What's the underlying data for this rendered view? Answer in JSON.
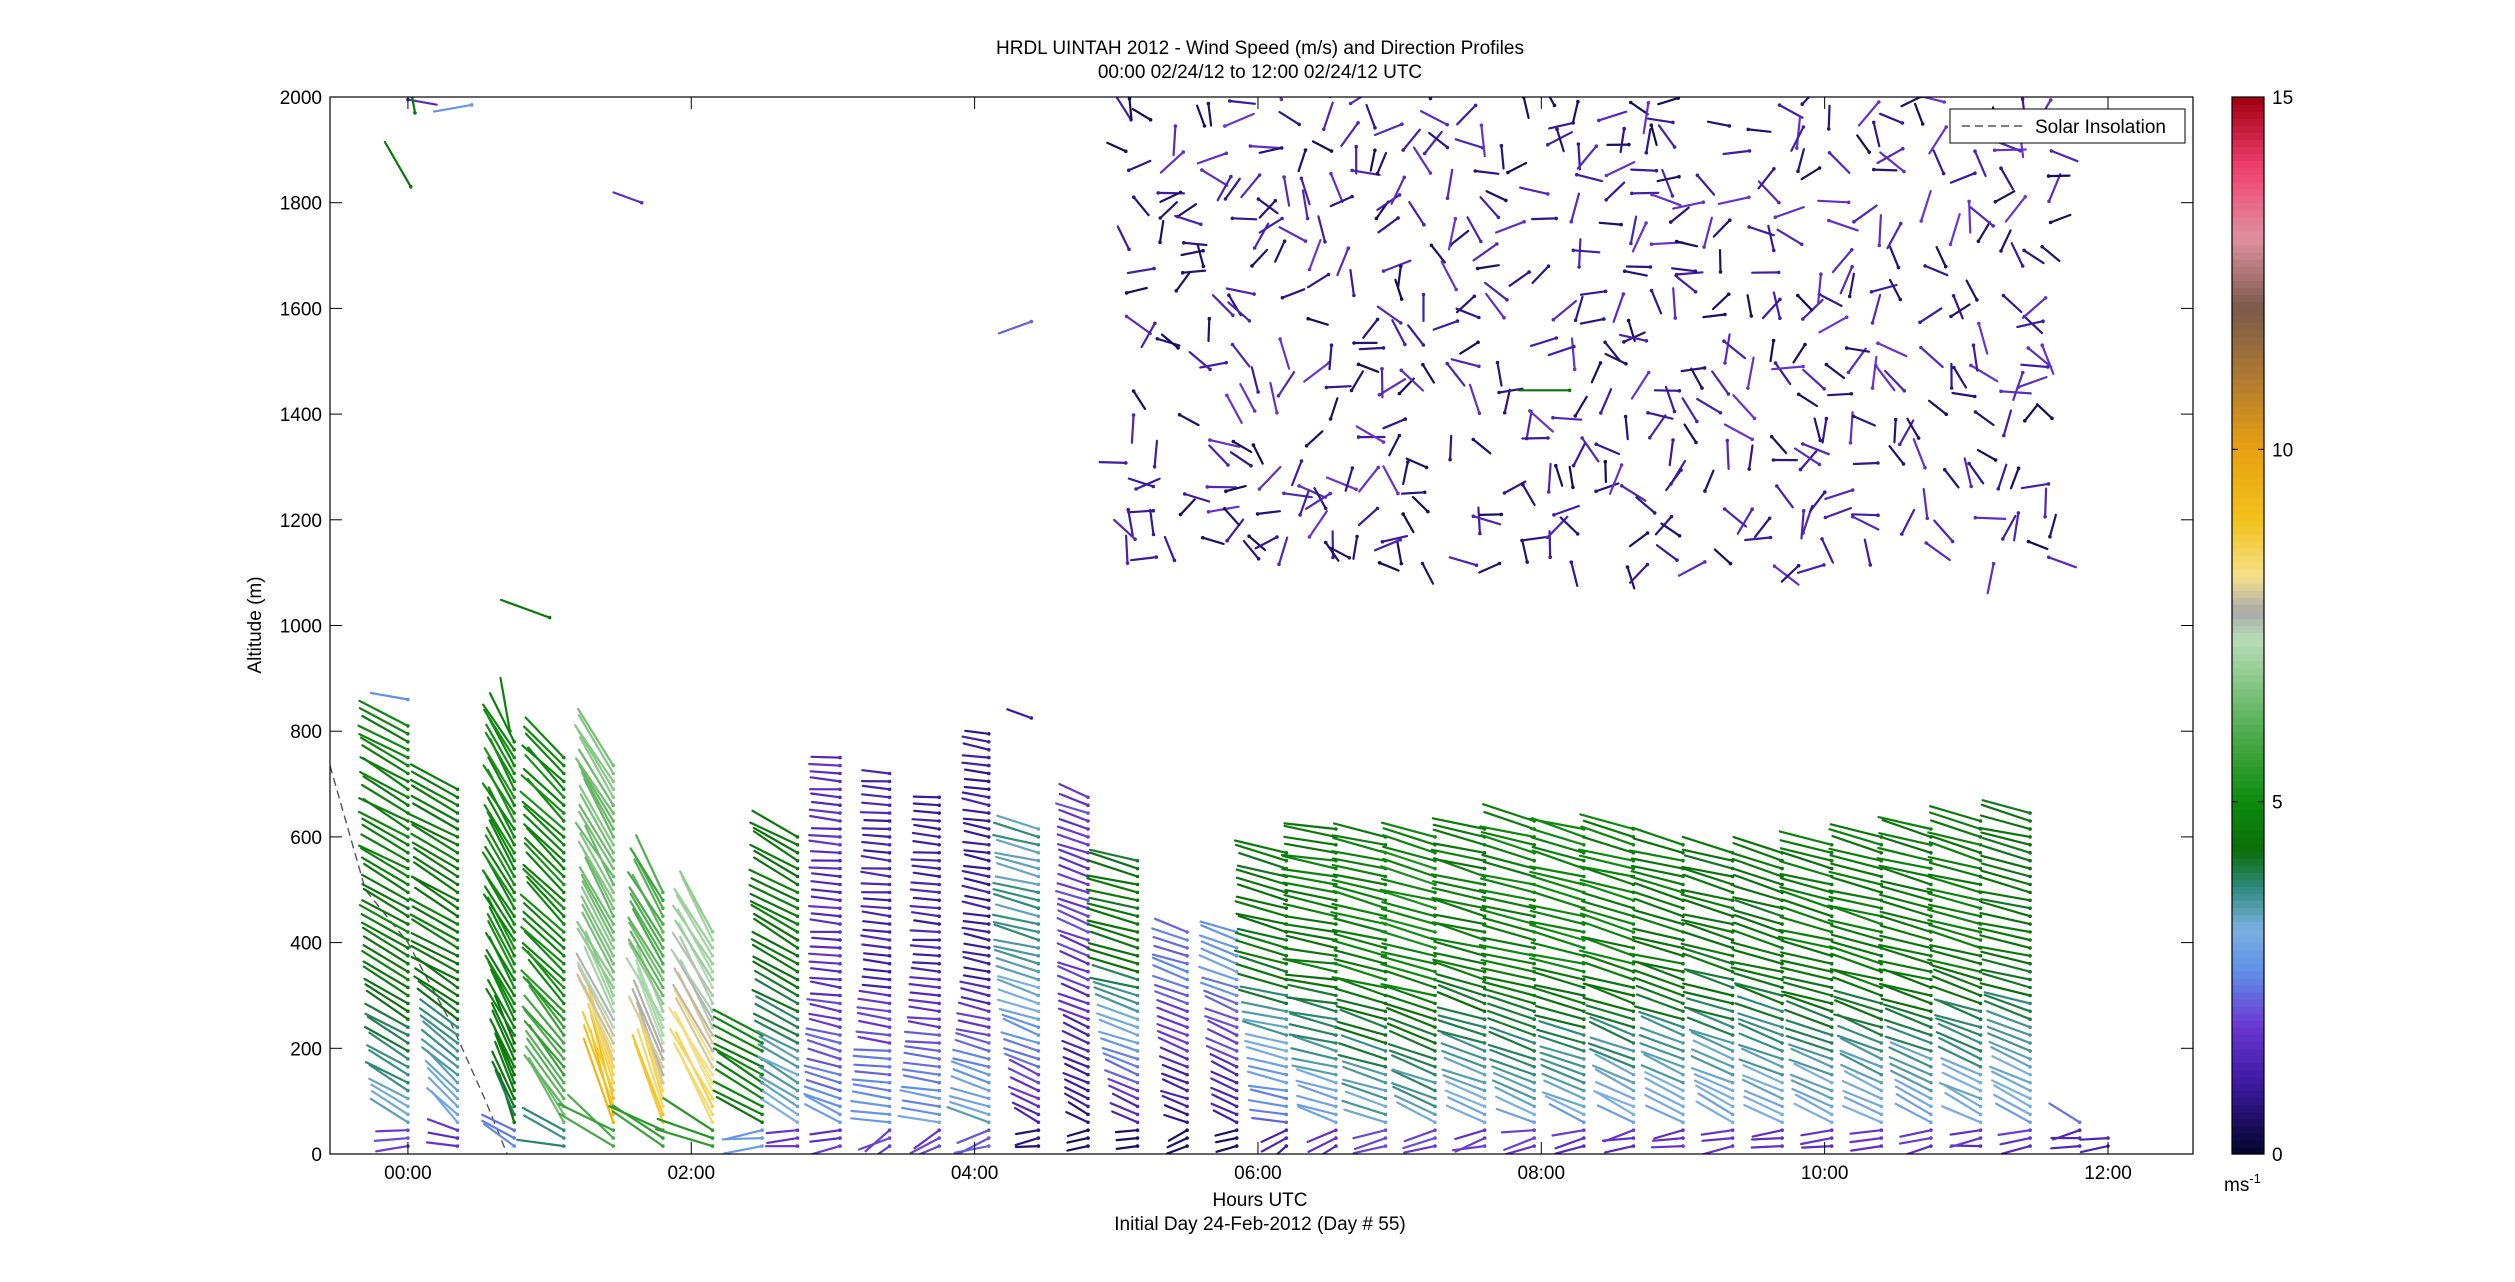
{
  "chart_data": {
    "type": "wind-barb-profile",
    "title": "HRDL UINTAH 2012 - Wind Speed (m/s) and Direction Profiles",
    "subtitle": "00:00 02/24/12 to 12:00 02/24/12  UTC",
    "xlabel": "Hours UTC",
    "xlabel2": "Initial Day 24-Feb-2012 (Day # 55)",
    "ylabel": "Altitude (m)",
    "xlim": [
      -0.55,
      12.6
    ],
    "ylim": [
      0,
      2000
    ],
    "xticks": [
      0,
      2,
      4,
      6,
      8,
      10,
      12
    ],
    "xtick_labels": [
      "00:00",
      "02:00",
      "04:00",
      "06:00",
      "08:00",
      "10:00",
      "12:00"
    ],
    "yticks": [
      0,
      200,
      400,
      600,
      800,
      1000,
      1200,
      1400,
      1600,
      1800,
      2000
    ],
    "legend": {
      "label": "Solar Insolation",
      "location": "top-right",
      "line_color": "#555555"
    },
    "solar_insolation": [
      [
        -0.55,
        735
      ],
      [
        -0.3,
        500
      ],
      [
        0.0,
        400
      ],
      [
        0.3,
        250
      ],
      [
        0.55,
        100
      ],
      [
        0.7,
        0
      ]
    ],
    "colorbar": {
      "min": 0,
      "max": 15,
      "ticks": [
        0,
        5,
        10,
        15
      ],
      "tick_labels": [
        "0",
        "5",
        "10",
        "15"
      ],
      "unit_label": "ms",
      "unit_exponent": "-1",
      "stops": [
        [
          0,
          "#05052a"
        ],
        [
          1,
          "#3a1aa0"
        ],
        [
          1.8,
          "#6a35d0"
        ],
        [
          2.6,
          "#6090e8"
        ],
        [
          3.2,
          "#7ab0e0"
        ],
        [
          3.8,
          "#2e8a7a"
        ],
        [
          4.3,
          "#0a6e0a"
        ],
        [
          5.0,
          "#0d8a0d"
        ],
        [
          6.0,
          "#4fad4f"
        ],
        [
          7.3,
          "#b8ddb8"
        ],
        [
          7.7,
          "#aaaaaa"
        ],
        [
          8.2,
          "#f5e08a"
        ],
        [
          9.0,
          "#f2c21a"
        ],
        [
          10.0,
          "#e8a010"
        ],
        [
          11.0,
          "#b07a30"
        ],
        [
          12.0,
          "#7a5a4a"
        ],
        [
          13.0,
          "#e090a0"
        ],
        [
          14.0,
          "#f04070"
        ],
        [
          15.0,
          "#a00010"
        ]
      ]
    },
    "profiles": [
      {
        "t": 0.0,
        "ztop": 820,
        "s_low": 3.0,
        "s_high": 4.7,
        "d_low": 300,
        "d_high": 300
      },
      {
        "t": 0.35,
        "ztop": 700,
        "s_low": 2.6,
        "s_high": 4.6,
        "d_low": 320,
        "d_high": 300
      },
      {
        "t": 0.75,
        "ztop": 780,
        "s_low": 4.0,
        "s_high": 5.0,
        "d_low": 340,
        "d_high": 330
      },
      {
        "t": 1.1,
        "ztop": 760,
        "s_low": 6.5,
        "s_high": 5.0,
        "d_low": 330,
        "d_high": 315
      },
      {
        "t": 1.45,
        "ztop": 740,
        "s_low": 10.0,
        "s_high": 6.5,
        "d_low": 345,
        "d_high": 330
      },
      {
        "t": 1.8,
        "ztop": 500,
        "s_low": 9.5,
        "s_high": 6.0,
        "d_low": 345,
        "d_high": 330
      },
      {
        "t": 2.15,
        "ztop": 420,
        "s_low": 9.0,
        "s_high": 7.0,
        "d_low": 330,
        "d_high": 330
      },
      {
        "t": 2.5,
        "ztop": 230,
        "s_low": 4.5,
        "s_high": 5.0,
        "d_low": 300,
        "d_high": 300
      },
      {
        "t": 2.75,
        "ztop": 600,
        "s_low": 2.8,
        "s_high": 4.5,
        "d_low": 300,
        "d_high": 300
      },
      {
        "t": 3.05,
        "ztop": 760,
        "s_low": 3.0,
        "s_high": 1.5,
        "d_low": 300,
        "d_high": 275
      },
      {
        "t": 3.4,
        "ztop": 720,
        "s_low": 3.3,
        "s_high": 1.2,
        "d_low": 280,
        "d_high": 275
      },
      {
        "t": 3.75,
        "ztop": 680,
        "s_low": 3.3,
        "s_high": 1.2,
        "d_low": 280,
        "d_high": 275
      },
      {
        "t": 4.1,
        "ztop": 800,
        "s_low": 3.8,
        "s_high": 1.0,
        "d_low": 290,
        "d_high": 280
      },
      {
        "t": 4.45,
        "ztop": 620,
        "s_low": 0.9,
        "s_high": 3.6,
        "d_low": 300,
        "d_high": 285
      },
      {
        "t": 4.8,
        "ztop": 680,
        "s_low": 0.6,
        "s_high": 1.8,
        "d_low": 300,
        "d_high": 290
      },
      {
        "t": 5.15,
        "ztop": 560,
        "s_low": 0.5,
        "s_high": 4.3,
        "d_low": 300,
        "d_high": 285
      },
      {
        "t": 5.5,
        "ztop": 420,
        "s_low": 0.5,
        "s_high": 2.4,
        "d_low": 290,
        "d_high": 290
      },
      {
        "t": 5.85,
        "ztop": 420,
        "s_low": 0.5,
        "s_high": 2.8,
        "d_low": 300,
        "d_high": 290
      },
      {
        "t": 6.2,
        "ztop": 580,
        "s_low": 1.8,
        "s_high": 4.4,
        "d_low": 280,
        "d_high": 285
      },
      {
        "t": 6.55,
        "ztop": 620,
        "s_low": 2.4,
        "s_high": 4.6,
        "d_low": 290,
        "d_high": 280
      },
      {
        "t": 6.9,
        "ztop": 600,
        "s_low": 3.0,
        "s_high": 4.8,
        "d_low": 290,
        "d_high": 285
      },
      {
        "t": 7.25,
        "ztop": 610,
        "s_low": 3.0,
        "s_high": 5.0,
        "d_low": 295,
        "d_high": 285
      },
      {
        "t": 7.6,
        "ztop": 620,
        "s_low": 2.8,
        "s_high": 4.6,
        "d_low": 295,
        "d_high": 285
      },
      {
        "t": 7.95,
        "ztop": 640,
        "s_low": 2.8,
        "s_high": 4.8,
        "d_low": 295,
        "d_high": 285
      },
      {
        "t": 8.3,
        "ztop": 620,
        "s_low": 2.6,
        "s_high": 4.8,
        "d_low": 295,
        "d_high": 285
      },
      {
        "t": 8.65,
        "ztop": 620,
        "s_low": 2.6,
        "s_high": 4.8,
        "d_low": 300,
        "d_high": 285
      },
      {
        "t": 9.0,
        "ztop": 590,
        "s_low": 2.6,
        "s_high": 4.6,
        "d_low": 300,
        "d_high": 285
      },
      {
        "t": 9.35,
        "ztop": 570,
        "s_low": 2.6,
        "s_high": 4.4,
        "d_low": 300,
        "d_high": 285
      },
      {
        "t": 9.7,
        "ztop": 570,
        "s_low": 2.6,
        "s_high": 4.4,
        "d_low": 300,
        "d_high": 285
      },
      {
        "t": 10.05,
        "ztop": 590,
        "s_low": 2.6,
        "s_high": 4.6,
        "d_low": 300,
        "d_high": 285
      },
      {
        "t": 10.4,
        "ztop": 610,
        "s_low": 2.6,
        "s_high": 4.6,
        "d_low": 300,
        "d_high": 285
      },
      {
        "t": 10.75,
        "ztop": 620,
        "s_low": 2.6,
        "s_high": 4.6,
        "d_low": 300,
        "d_high": 285
      },
      {
        "t": 11.1,
        "ztop": 640,
        "s_low": 2.6,
        "s_high": 4.6,
        "d_low": 300,
        "d_high": 285
      },
      {
        "t": 11.45,
        "ztop": 650,
        "s_low": 2.6,
        "s_high": 4.4,
        "d_low": 300,
        "d_high": 285
      },
      {
        "t": 11.8,
        "ztop": 60,
        "s_low": 2.4,
        "s_high": 2.4,
        "d_low": 300,
        "d_high": 300
      },
      {
        "t": 12.0,
        "ztop": 30,
        "s_low": 2.0,
        "s_high": 2.0,
        "d_low": 300,
        "d_high": 300
      }
    ],
    "upper_region": {
      "t_min": 5.1,
      "t_max": 11.75,
      "z_min": 1100,
      "z_max": 2000,
      "s_min": 0.3,
      "s_max": 1.8
    },
    "scattered_barbs": [
      {
        "t": 0.0,
        "z": 1995,
        "s": 1.5,
        "d": 100
      },
      {
        "t": 0.05,
        "z": 1970,
        "s": 4.5,
        "d": 350
      },
      {
        "t": 0.45,
        "z": 1985,
        "s": 2.7,
        "d": 260
      },
      {
        "t": 0.02,
        "z": 1830,
        "s": 4.5,
        "d": 330
      },
      {
        "t": 1.65,
        "z": 1800,
        "s": 1.6,
        "d": 290
      },
      {
        "t": 4.4,
        "z": 1575,
        "s": 2.2,
        "d": 250
      },
      {
        "t": 1.0,
        "z": 1015,
        "s": 4.5,
        "d": 290
      },
      {
        "t": 0.0,
        "z": 860,
        "s": 2.6,
        "d": 280
      },
      {
        "t": 0.72,
        "z": 800,
        "s": 4.8,
        "d": 350
      },
      {
        "t": 4.4,
        "z": 825,
        "s": 1.0,
        "d": 290
      },
      {
        "t": 8.2,
        "z": 1445,
        "s": 4.4,
        "d": 270
      }
    ]
  }
}
